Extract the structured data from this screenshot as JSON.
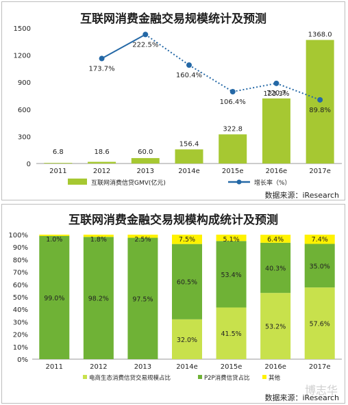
{
  "chart_data": [
    {
      "type": "bar",
      "title": "互联网消费金融交易规模统计及预测",
      "categories": [
        "2011",
        "2012",
        "2013",
        "2014e",
        "2015e",
        "2016e",
        "2017e"
      ],
      "series": [
        {
          "name": "互联网消费信贷GMV(亿元)",
          "type": "bar",
          "values": [
            6.8,
            18.6,
            60.0,
            156.4,
            322.8,
            720.7,
            1368.0
          ],
          "color": "#a6c832"
        },
        {
          "name": "增长率（%）",
          "type": "line",
          "values": [
            null,
            173.7,
            222.5,
            160.4,
            106.4,
            123.3,
            89.8
          ],
          "color": "#2468a6"
        }
      ],
      "value_labels": [
        "6.8",
        "18.6",
        "60.0",
        "156.4",
        "322.8",
        "720.7",
        "1368.0"
      ],
      "rate_labels": [
        "",
        "173.7%",
        "222.5%",
        "160.4%",
        "106.4%",
        "123.3%",
        "89.8%"
      ],
      "ylim": [
        0,
        1500
      ],
      "yticks": [
        "0",
        "300",
        "600",
        "900",
        "1200",
        "1500"
      ],
      "source": "数据来源：iResearch"
    },
    {
      "type": "bar",
      "stacked": true,
      "title": "互联网消费金融交易规模构成统计及预测",
      "categories": [
        "2011",
        "2012",
        "2013",
        "2014e",
        "2015e",
        "2016e",
        "2017e"
      ],
      "series": [
        {
          "name": "电商生态消费信贷交易规模占比",
          "values": [
            0,
            0,
            0,
            32.0,
            41.5,
            53.2,
            57.6
          ],
          "color": "#c8e14c"
        },
        {
          "name": "P2P消费信贷占比",
          "values": [
            99.0,
            98.2,
            97.5,
            60.5,
            53.4,
            40.3,
            35.0
          ],
          "color": "#6fb236"
        },
        {
          "name": "其他",
          "values": [
            1.0,
            1.8,
            2.5,
            7.5,
            5.1,
            6.4,
            7.4
          ],
          "color": "#fff200"
        }
      ],
      "yticks": [
        "0%",
        "10%",
        "20%",
        "30%",
        "40%",
        "50%",
        "60%",
        "70%",
        "80%",
        "90%",
        "100%"
      ],
      "source": "数据来源：iResearch"
    }
  ],
  "watermark": "博志华"
}
